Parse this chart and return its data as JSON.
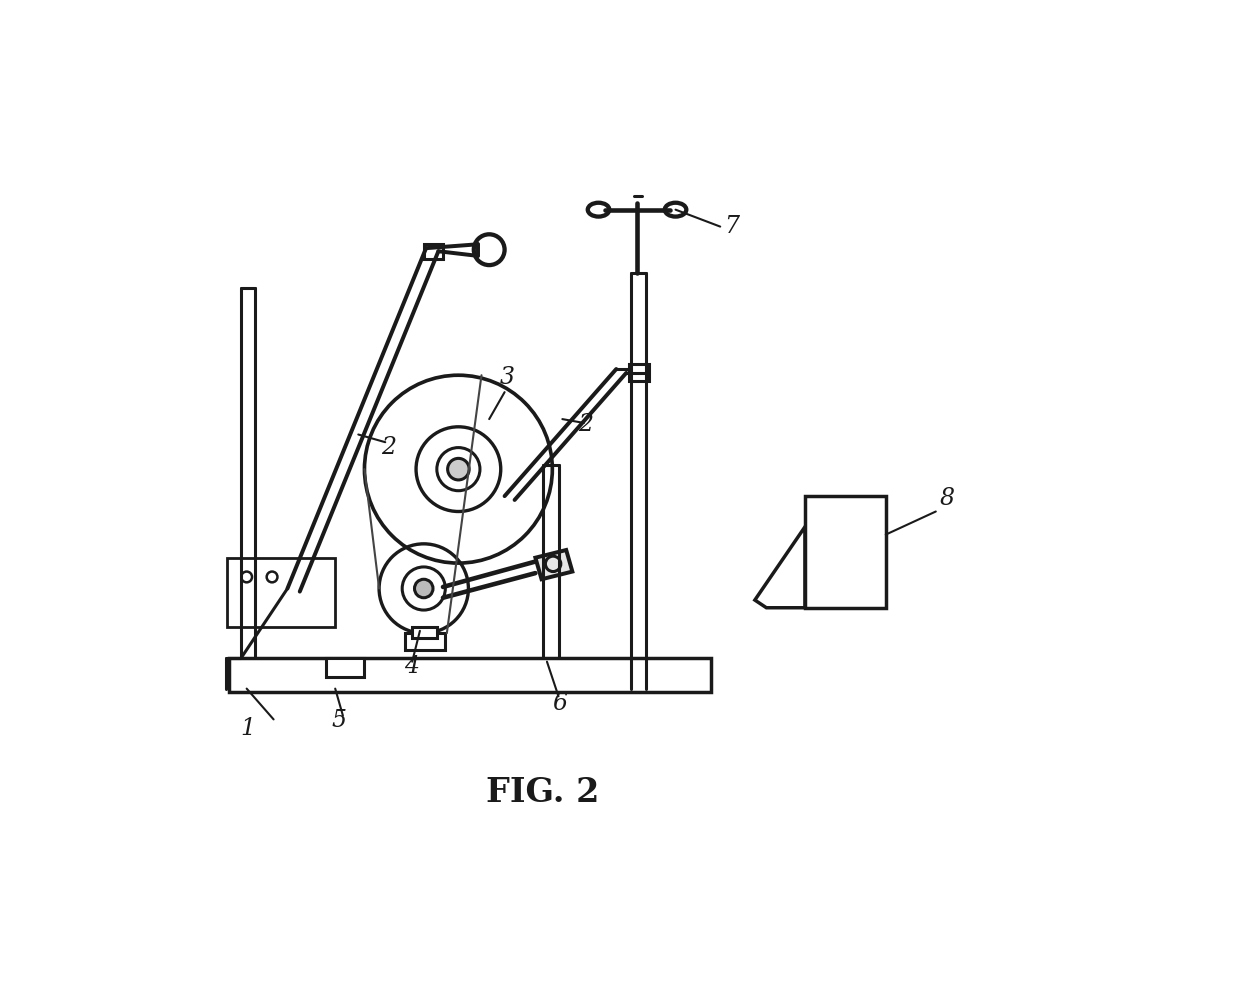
{
  "title": "FIG. 2",
  "bg_color": "#ffffff",
  "lc": "#1a1a1a",
  "lw": 2.2,
  "fig_width": 12.4,
  "fig_height": 9.9
}
